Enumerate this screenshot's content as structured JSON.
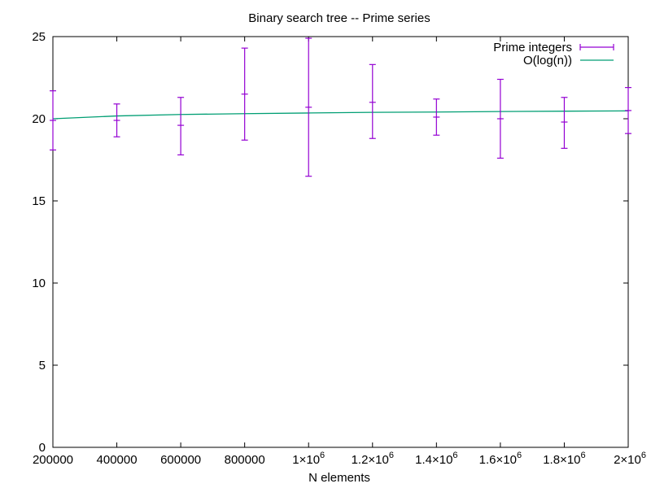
{
  "chart_data": {
    "type": "line",
    "title": "Binary search tree -- Prime series",
    "xlabel": "N elements",
    "ylabel": "",
    "xlim": [
      200000,
      2000000
    ],
    "ylim": [
      0,
      25
    ],
    "grid": false,
    "legend_position": "top-right",
    "x_ticks": [
      {
        "value": 200000,
        "base": "200000",
        "exp": ""
      },
      {
        "value": 400000,
        "base": "400000",
        "exp": ""
      },
      {
        "value": 600000,
        "base": "600000",
        "exp": ""
      },
      {
        "value": 800000,
        "base": "800000",
        "exp": ""
      },
      {
        "value": 1000000,
        "base": "1×10",
        "exp": "6"
      },
      {
        "value": 1200000,
        "base": "1.2×10",
        "exp": "6"
      },
      {
        "value": 1400000,
        "base": "1.4×10",
        "exp": "6"
      },
      {
        "value": 1600000,
        "base": "1.6×10",
        "exp": "6"
      },
      {
        "value": 1800000,
        "base": "1.8×10",
        "exp": "6"
      },
      {
        "value": 2000000,
        "base": "2×10",
        "exp": "6"
      }
    ],
    "y_ticks": [
      {
        "value": 0,
        "label": "0"
      },
      {
        "value": 5,
        "label": "5"
      },
      {
        "value": 10,
        "label": "10"
      },
      {
        "value": 15,
        "label": "15"
      },
      {
        "value": 20,
        "label": "20"
      },
      {
        "value": 25,
        "label": "25"
      }
    ],
    "series": [
      {
        "name": "Prime integers",
        "kind": "errorbars",
        "color": "#9400d3",
        "points": [
          {
            "x": 200000,
            "y": 19.9,
            "low": 18.1,
            "high": 21.7
          },
          {
            "x": 400000,
            "y": 19.9,
            "low": 18.9,
            "high": 20.9
          },
          {
            "x": 600000,
            "y": 19.6,
            "low": 17.8,
            "high": 21.3
          },
          {
            "x": 800000,
            "y": 21.5,
            "low": 18.7,
            "high": 24.3
          },
          {
            "x": 1000000,
            "y": 20.7,
            "low": 16.5,
            "high": 24.9
          },
          {
            "x": 1200000,
            "y": 21.0,
            "low": 18.8,
            "high": 23.3
          },
          {
            "x": 1400000,
            "y": 20.1,
            "low": 19.0,
            "high": 21.2
          },
          {
            "x": 1600000,
            "y": 20.0,
            "low": 17.6,
            "high": 22.4
          },
          {
            "x": 1800000,
            "y": 19.8,
            "low": 18.2,
            "high": 21.3
          },
          {
            "x": 2000000,
            "y": 20.5,
            "low": 19.1,
            "high": 21.9
          }
        ]
      },
      {
        "name": "O(log(n))",
        "kind": "line",
        "color": "#009e73",
        "x": [
          200000,
          400000,
          600000,
          800000,
          1000000,
          1200000,
          1400000,
          1600000,
          1800000,
          2000000
        ],
        "values": [
          20.0,
          20.17,
          20.26,
          20.31,
          20.35,
          20.39,
          20.41,
          20.44,
          20.46,
          20.48
        ]
      }
    ]
  }
}
